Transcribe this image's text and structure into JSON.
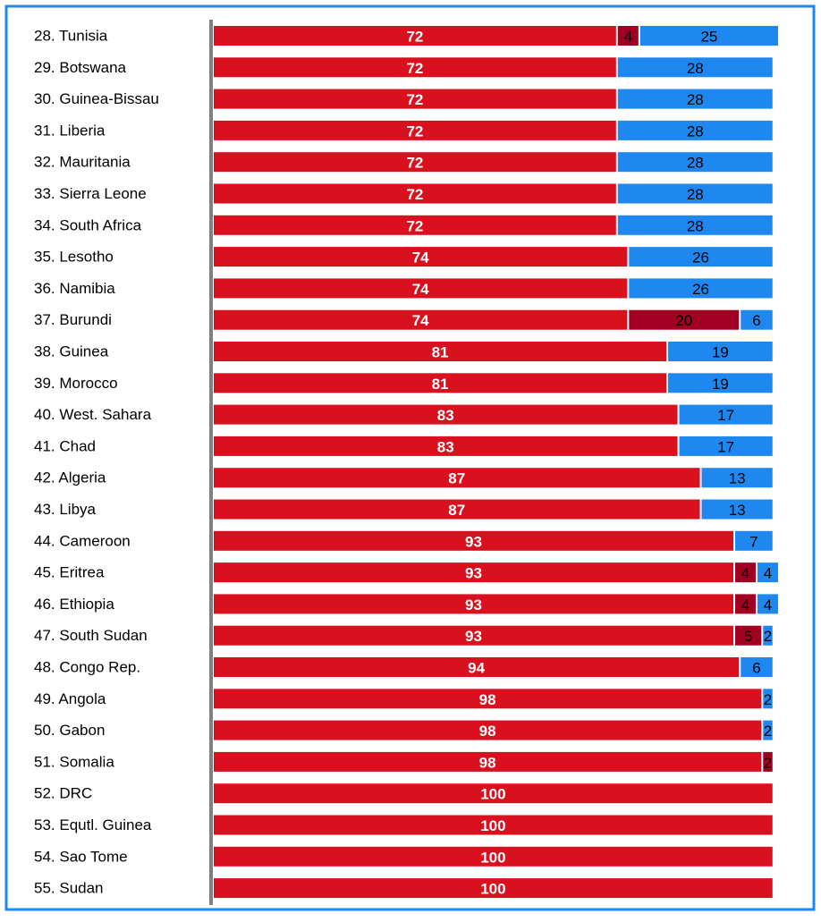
{
  "chart_data": {
    "type": "stacked-bar-horizontal",
    "categories": [
      "28. Tunisia",
      "29. Botswana",
      "30. Guinea-Bissau",
      "31. Liberia",
      "32. Mauritania",
      "33. Sierra Leone",
      "34. South Africa",
      "35. Lesotho",
      "36. Namibia",
      "37. Burundi",
      "38. Guinea",
      "39. Morocco",
      "40. West. Sahara",
      "41. Chad",
      "42. Algeria",
      "43. Libya",
      "44. Cameroon",
      "45. Eritrea",
      "46. Ethiopia",
      "47. South Sudan",
      "48. Congo Rep.",
      "49. Angola",
      "50. Gabon",
      "51. Somalia",
      "52. DRC",
      "53. Equtl. Guinea",
      "54. Sao Tome",
      "55. Sudan"
    ],
    "series": [
      {
        "color": "#d9111e",
        "values": [
          72,
          72,
          72,
          72,
          72,
          72,
          72,
          74,
          74,
          74,
          81,
          81,
          83,
          83,
          87,
          87,
          93,
          93,
          93,
          93,
          94,
          98,
          98,
          98,
          100,
          100,
          100,
          100
        ]
      },
      {
        "color": "#a10022",
        "values": [
          4,
          null,
          null,
          null,
          null,
          null,
          null,
          null,
          null,
          20,
          null,
          null,
          null,
          null,
          null,
          null,
          null,
          4,
          4,
          5,
          null,
          null,
          null,
          2,
          null,
          null,
          null,
          null
        ]
      },
      {
        "color": "#1e88f0",
        "values": [
          25,
          28,
          28,
          28,
          28,
          28,
          28,
          26,
          26,
          6,
          19,
          19,
          17,
          17,
          13,
          13,
          7,
          4,
          4,
          2,
          6,
          2,
          2,
          null,
          null,
          null,
          null,
          null
        ]
      }
    ]
  }
}
